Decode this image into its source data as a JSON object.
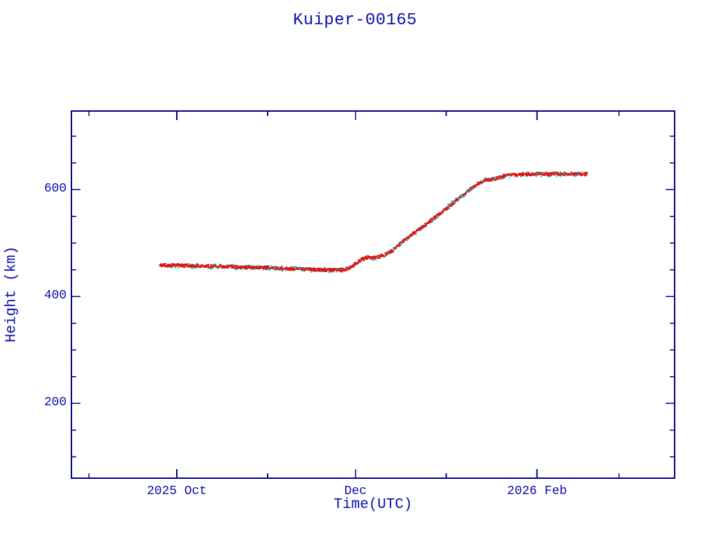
{
  "page": {
    "background": "#ffffff"
  },
  "chart_data": {
    "type": "scatter",
    "title": "Kuiper-00165",
    "xlabel": "Time(UTC)",
    "ylabel": "Height (km)",
    "grid": false,
    "legend": false,
    "x_range": [
      "2025-08-26",
      "2026-03-20"
    ],
    "y_range": [
      60,
      747
    ],
    "x_major_ticks": [
      {
        "date": "2025-10-01",
        "label": "2025 Oct"
      },
      {
        "date": "2025-12-01",
        "label": "Dec"
      },
      {
        "date": "2026-02-01",
        "label": "2026 Feb"
      }
    ],
    "x_minor_ticks": [
      "2025-09-01",
      "2025-11-01",
      "2026-01-01",
      "2026-03-01"
    ],
    "y_major_ticks": [
      200,
      400,
      600
    ],
    "y_minor_ticks": [
      100,
      150,
      250,
      300,
      350,
      450,
      500,
      550,
      650,
      700
    ],
    "colors": {
      "axis": "#00008b",
      "text": "#0d0dae",
      "series_red": "#ea0f0f",
      "series_cyan": "#00dede",
      "series_dark": "#0a7878"
    },
    "series": [
      {
        "name": "underlay-cyan-points",
        "color_key": "series_cyan"
      },
      {
        "name": "overlay-red-points",
        "color_key": "series_red"
      }
    ],
    "points": [
      [
        "2025-09-25",
        460
      ],
      [
        "2025-10-01",
        459.5
      ],
      [
        "2025-10-08",
        458.5
      ],
      [
        "2025-10-15",
        457.5
      ],
      [
        "2025-10-22",
        456.5
      ],
      [
        "2025-11-01",
        455
      ],
      [
        "2025-11-08",
        453.5
      ],
      [
        "2025-11-15",
        452
      ],
      [
        "2025-11-20",
        451
      ],
      [
        "2025-11-24",
        450.5
      ],
      [
        "2025-11-27",
        451.5
      ],
      [
        "2025-11-29",
        456
      ],
      [
        "2025-12-01",
        464
      ],
      [
        "2025-12-03",
        471
      ],
      [
        "2025-12-05",
        474.5
      ],
      [
        "2025-12-07",
        473.5
      ],
      [
        "2025-12-09",
        476
      ],
      [
        "2025-12-11",
        480
      ],
      [
        "2025-12-13",
        486
      ],
      [
        "2025-12-15",
        495
      ],
      [
        "2025-12-17",
        504
      ],
      [
        "2025-12-19",
        513
      ],
      [
        "2025-12-21",
        521
      ],
      [
        "2025-12-23",
        529
      ],
      [
        "2025-12-26",
        541
      ],
      [
        "2025-12-29",
        554
      ],
      [
        "2026-01-01",
        567
      ],
      [
        "2026-01-04",
        580
      ],
      [
        "2026-01-07",
        594
      ],
      [
        "2026-01-10",
        606
      ],
      [
        "2026-01-12",
        614
      ],
      [
        "2026-01-14",
        620
      ],
      [
        "2026-01-16",
        619.5
      ],
      [
        "2026-01-18",
        622
      ],
      [
        "2026-01-20",
        626
      ],
      [
        "2026-01-23",
        629
      ],
      [
        "2026-01-26",
        630
      ],
      [
        "2026-02-01",
        630.5
      ],
      [
        "2026-02-10",
        630.5
      ],
      [
        "2026-02-18",
        630.5
      ]
    ]
  }
}
